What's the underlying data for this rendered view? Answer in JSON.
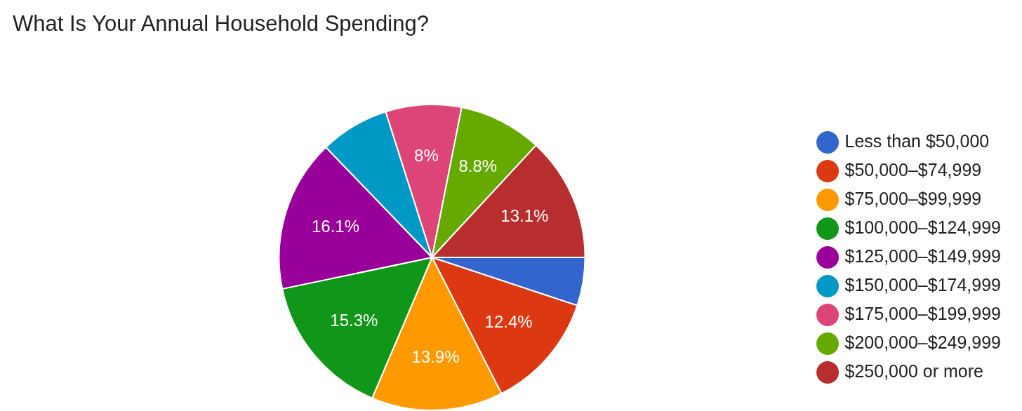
{
  "chart_data": {
    "type": "pie",
    "title": "What Is Your Annual Household Spending?",
    "categories": [
      "Less than $50,000",
      "$50,000–$74,999",
      "$75,000–$99,999",
      "$100,000–$124,999",
      "$125,000–$149,999",
      "$150,000–$174,999",
      "$175,000–$199,999",
      "$200,000–$249,999",
      "$250,000 or more"
    ],
    "values": [
      5.1,
      12.4,
      13.9,
      15.3,
      16.1,
      7.3,
      8,
      8.8,
      13.1
    ],
    "value_labels": [
      null,
      "12.4%",
      "13.9%",
      "15.3%",
      "16.1%",
      null,
      "8%",
      "8.8%",
      "13.1%"
    ],
    "colors": [
      "#3366cc",
      "#dc3912",
      "#ff9900",
      "#109618",
      "#990099",
      "#0099c6",
      "#dd4477",
      "#66aa00",
      "#b82e2e"
    ],
    "legend": "right"
  }
}
